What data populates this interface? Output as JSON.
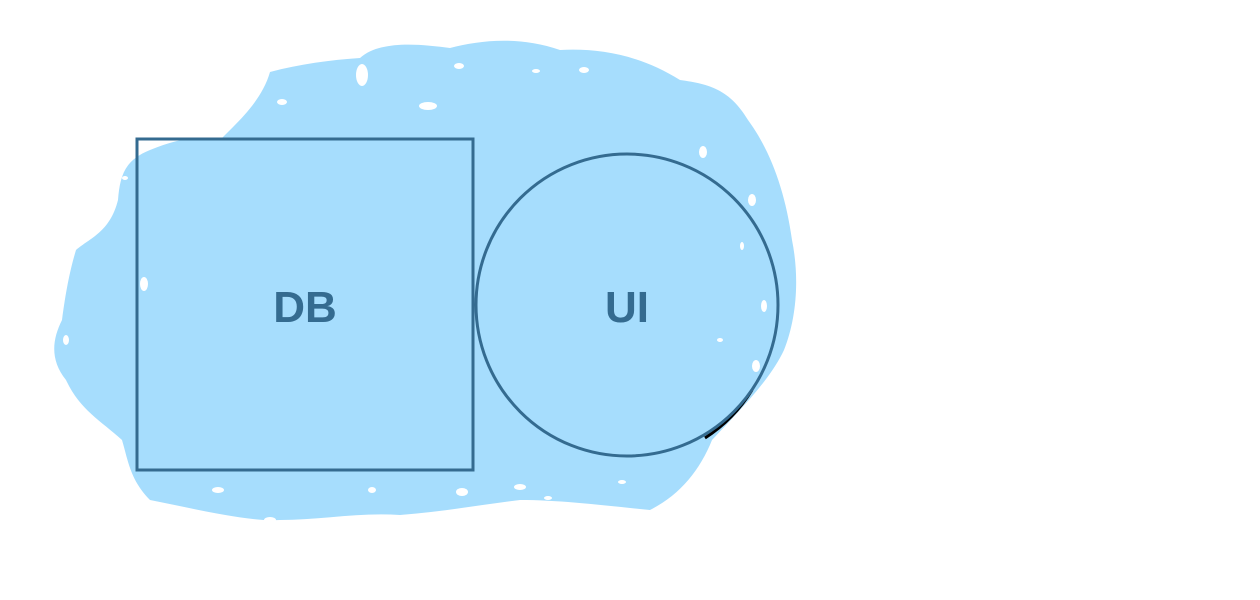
{
  "diagram": {
    "colors": {
      "background": "#ffffff",
      "blob_fill": "#a6ddfd",
      "shape_stroke": "#346b90",
      "outline_stroke": "#000000",
      "label": "#346b90"
    },
    "nodes": [
      {
        "id": "db",
        "shape": "rectangle",
        "label": "DB"
      },
      {
        "id": "ui",
        "shape": "circle",
        "label": "UI"
      }
    ]
  }
}
